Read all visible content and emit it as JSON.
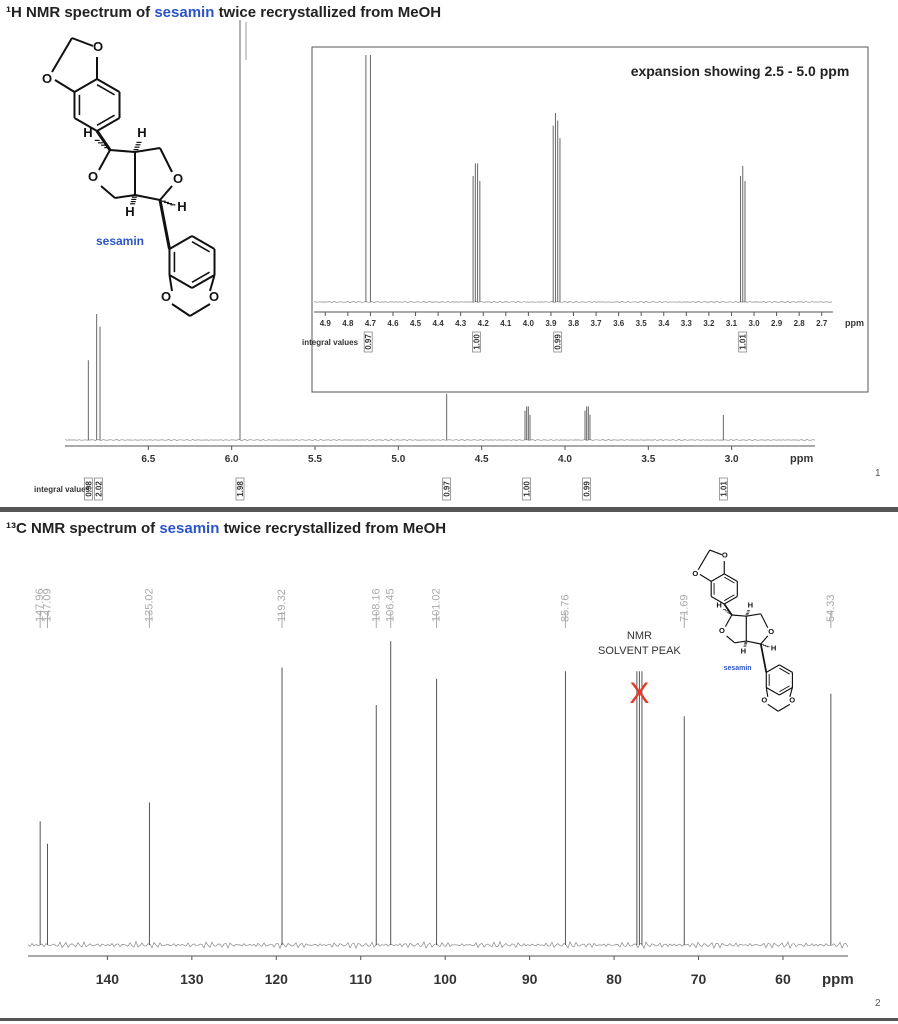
{
  "chart_data": [
    {
      "type": "spectrum",
      "title": {
        "prefix": "¹H NMR spectrum of",
        "highlight": "sesamin",
        "suffix": "twice recrystallized from MeOH",
        "highlight_color": "#2a55c8"
      },
      "xlim": [
        7.0,
        2.5
      ],
      "xticks": [
        6.5,
        {
          "value": 6,
          "label": "6.0"
        },
        5.5,
        {
          "value": 5,
          "label": "5.0"
        },
        4.5,
        {
          "value": 4,
          "label": "4.0"
        },
        3.5,
        {
          "value": 3,
          "label": "3.0"
        }
      ],
      "x_unit": "ppm",
      "color": "#666666",
      "peaks": {
        "x": [
          6.86,
          6.81,
          6.79,
          5.95,
          4.71,
          4.24,
          4.23,
          4.22,
          4.21,
          3.88,
          3.87,
          3.86,
          3.85,
          3.05
        ],
        "values": [
          19,
          30,
          27,
          100,
          11,
          7,
          8,
          8,
          6,
          7,
          8,
          8,
          6,
          6
        ]
      },
      "integrals": {
        "label": "integral values",
        "x": [
          6.86,
          6.8,
          5.95,
          4.71,
          4.23,
          3.87,
          3.05
        ],
        "values": [
          0.98,
          2.02,
          1.98,
          0.97,
          1,
          0.99,
          1.01
        ],
        "value_labels": [
          "0.98",
          "2.02",
          "1.98",
          "0.97",
          "1.00",
          "0.99",
          "1.01"
        ]
      },
      "structure": {
        "name": "sesamin",
        "name_color": "#2a55c8",
        "atoms": [
          "O",
          "O",
          "H",
          "H",
          "O",
          "O",
          "H",
          "H",
          "O",
          "O"
        ]
      },
      "page_number": 1,
      "inset": {
        "title": "expansion showing 2.5 - 5.0 ppm",
        "xlim": [
          4.95,
          2.65
        ],
        "xticks": [
          4.9,
          4.8,
          4.7,
          4.6,
          4.5,
          4.4,
          4.3,
          4.2,
          4.1,
          {
            "value": 4,
            "label": "4.0"
          },
          3.9,
          3.8,
          3.7,
          3.6,
          3.5,
          3.4,
          3.3,
          3.2,
          3.1,
          {
            "value": 3,
            "label": "3.0"
          },
          2.9,
          2.8,
          2.7
        ],
        "x_unit": "ppm",
        "peaks": {
          "x": [
            4.72,
            4.7,
            4.245,
            4.235,
            4.225,
            4.215,
            3.89,
            3.88,
            3.87,
            3.86,
            3.06,
            3.05,
            3.04
          ],
          "values": [
            98,
            98,
            50,
            55,
            55,
            48,
            70,
            75,
            72,
            65,
            50,
            54,
            48
          ]
        },
        "integrals": {
          "label": "integral values",
          "x": [
            4.71,
            4.23,
            3.87,
            3.05
          ],
          "values": [
            0.97,
            1,
            0.99,
            1.01
          ],
          "value_labels": [
            "0.97",
            "1.00",
            "0.99",
            "1.01"
          ]
        }
      }
    },
    {
      "type": "spectrum",
      "title": {
        "prefix": "¹³C NMR spectrum of",
        "highlight": "sesamin",
        "suffix": "twice recrystallized from MeOH",
        "highlight_color": "#2a55c8"
      },
      "xlim": [
        149.4,
        52.3
      ],
      "xticks": [
        140,
        130,
        120,
        110,
        100,
        90,
        80,
        70,
        60
      ],
      "x_unit": "ppm",
      "color": "#555555",
      "peak_label_color": "#aaaaaa",
      "peaks": {
        "x": [
          147.96,
          147.09,
          135.02,
          119.32,
          108.16,
          106.45,
          101.02,
          85.76,
          71.69,
          54.33
        ],
        "values": [
          33,
          27,
          38,
          74,
          64,
          81,
          71,
          73,
          61,
          67
        ]
      },
      "solvent": {
        "labels": [
          "NMR",
          "SOLVENT PEAK"
        ],
        "marker": "X",
        "marker_color": "#e53a2a",
        "x": [
          77.3,
          77.0,
          76.7
        ],
        "values": [
          73,
          73,
          73
        ]
      },
      "structure": {
        "name": "sesamin",
        "name_color": "#2a55c8",
        "atoms": [
          "O",
          "O",
          "H",
          "H",
          "O",
          "O",
          "H",
          "H",
          "O",
          "O"
        ]
      },
      "page_number": 2
    }
  ]
}
